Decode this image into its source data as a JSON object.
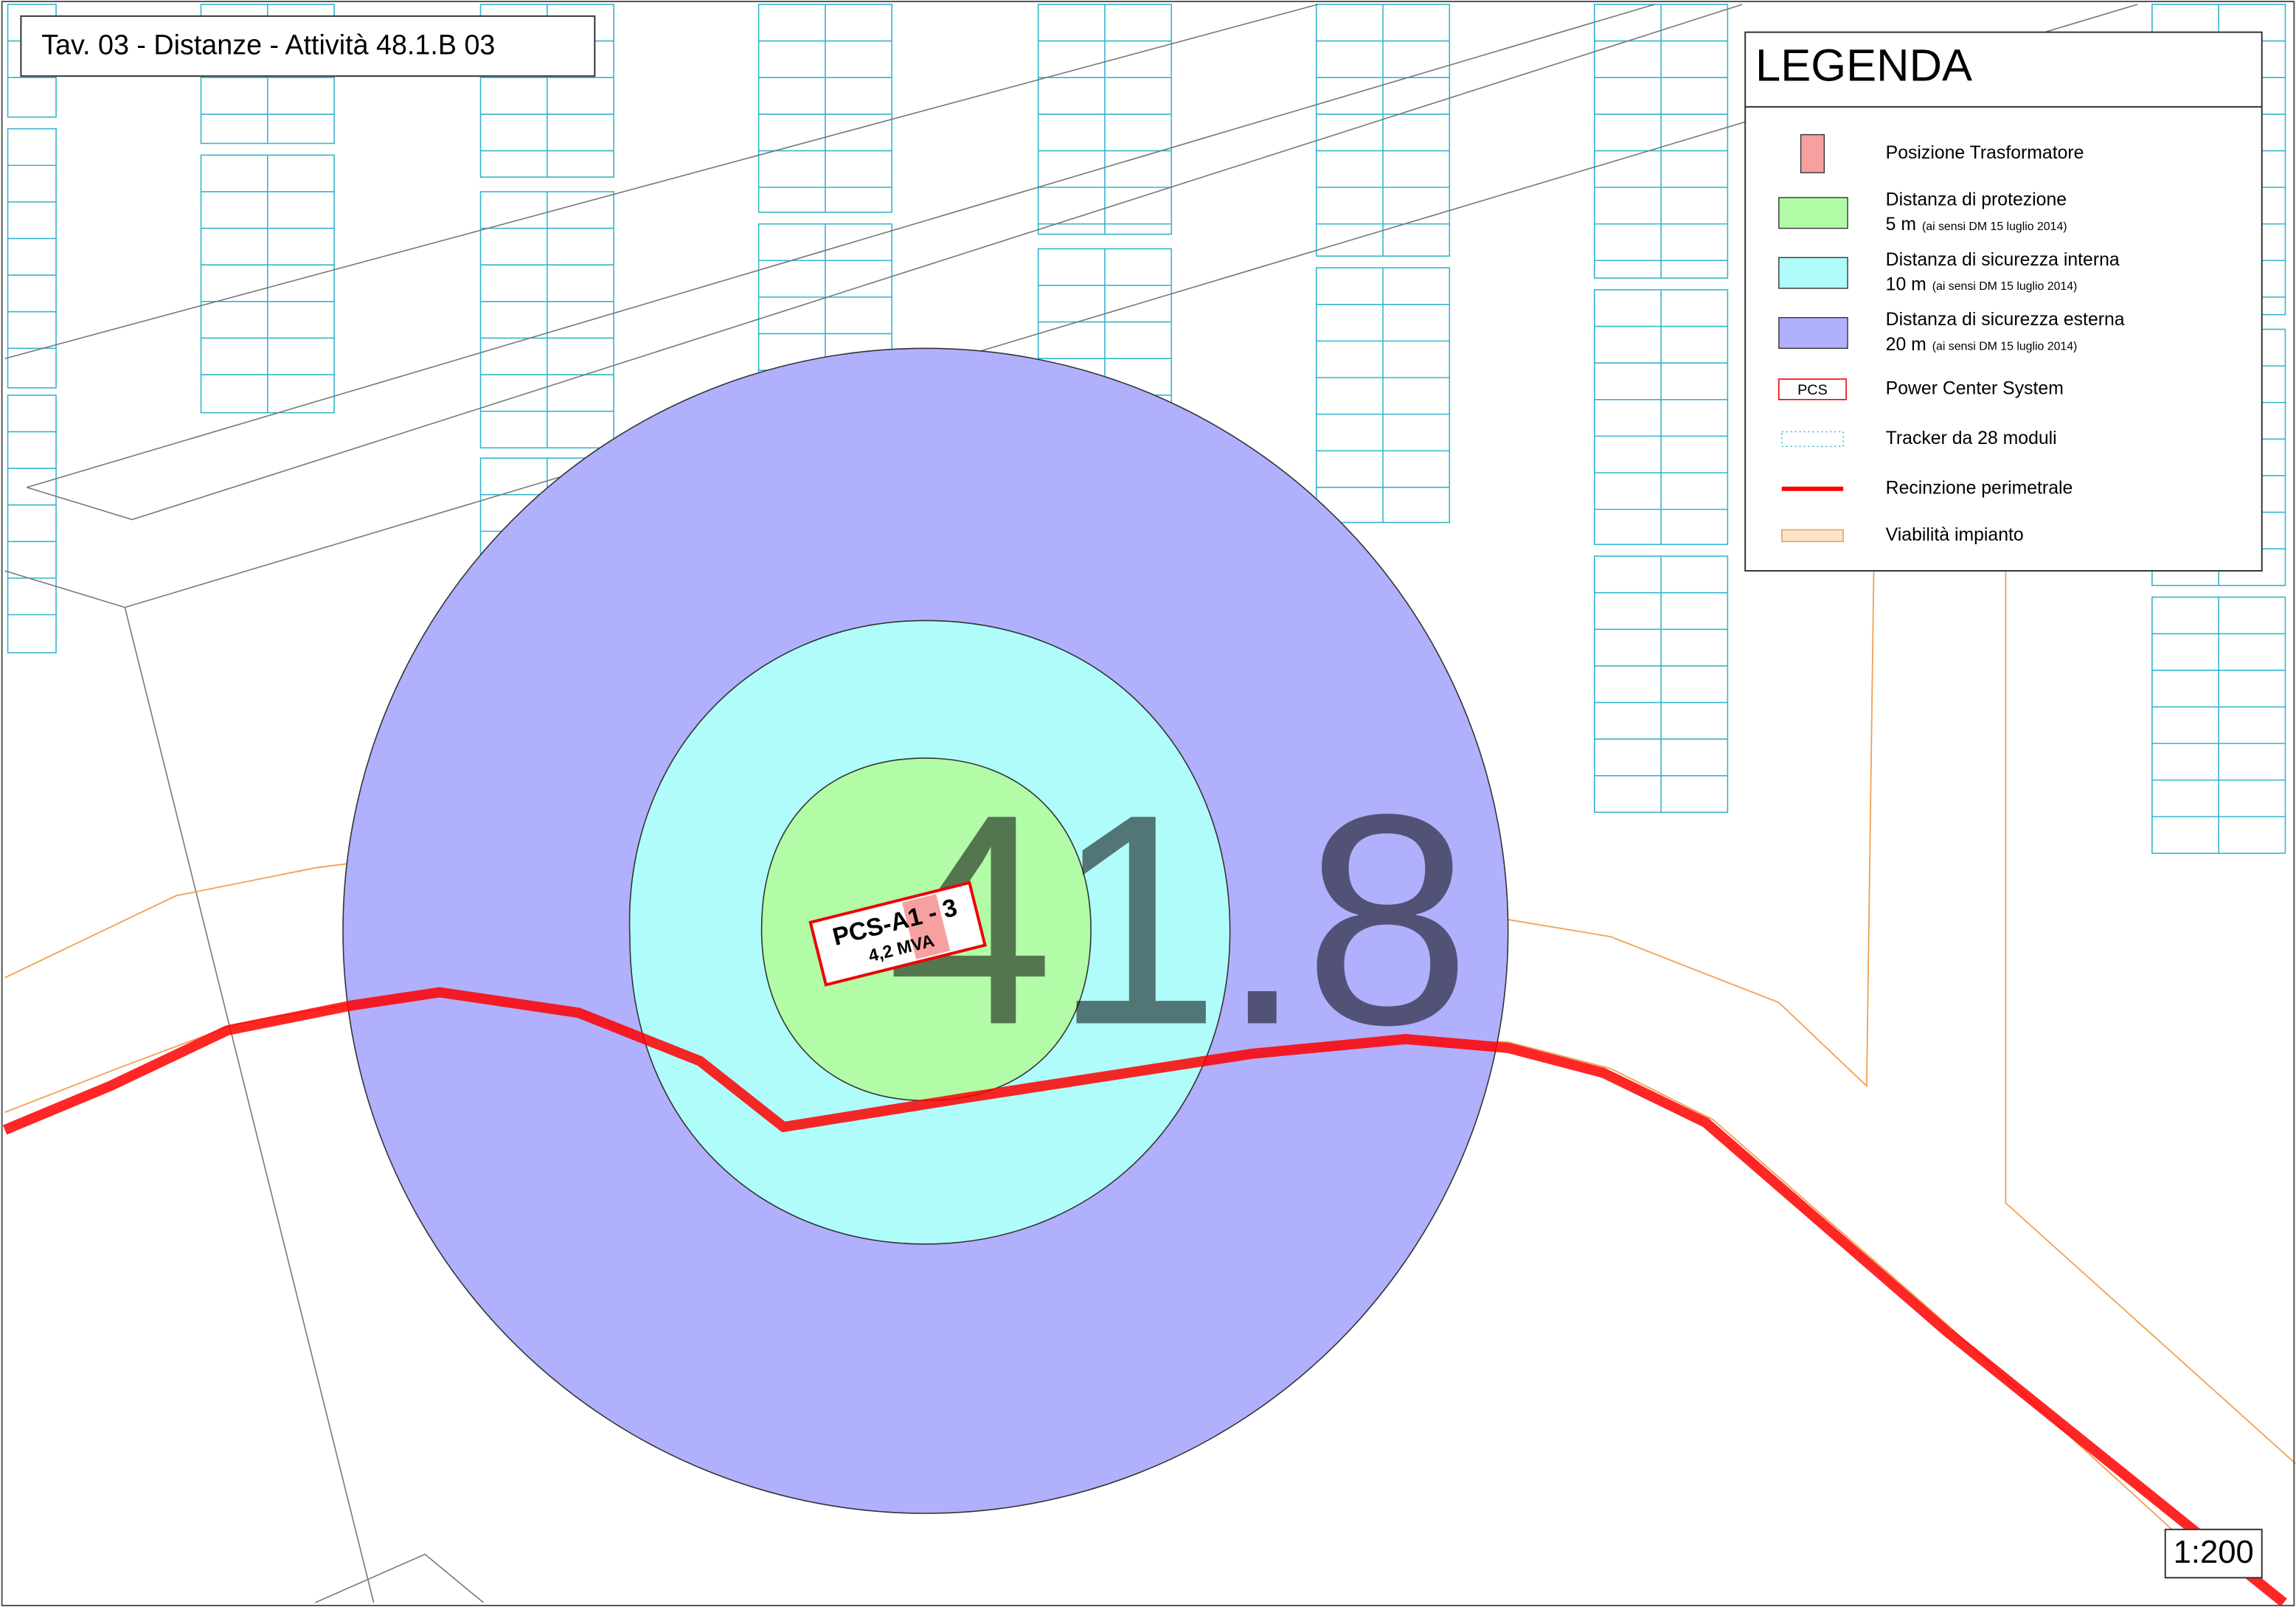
{
  "title": "Tav. 03 - Distanze - Attività 48.1.B 03",
  "map": {
    "pcs_name": "PCS-A1 - 3",
    "pcs_power": "4,2 MVA",
    "area_number": "41.8",
    "scale": "1:200"
  },
  "legend": {
    "title": "LEGENDA",
    "items": [
      {
        "label": "Posizione Trasformatore"
      },
      {
        "label": "Distanza di protezione",
        "distance": "5 m",
        "note": "(ai sensi DM 15 luglio 2014)"
      },
      {
        "label": "Distanza di sicurezza interna",
        "distance": "10 m",
        "note": "(ai sensi DM 15 luglio 2014)"
      },
      {
        "label": "Distanza di sicurezza esterna",
        "distance": "20 m",
        "note": "(ai sensi DM 15 luglio 2014)"
      },
      {
        "label": "Power Center System",
        "symbol": "PCS"
      },
      {
        "label": "Tracker da 28 moduli"
      },
      {
        "label": "Recinzione perimetrale"
      },
      {
        "label": "Viabilità impianto"
      }
    ]
  }
}
